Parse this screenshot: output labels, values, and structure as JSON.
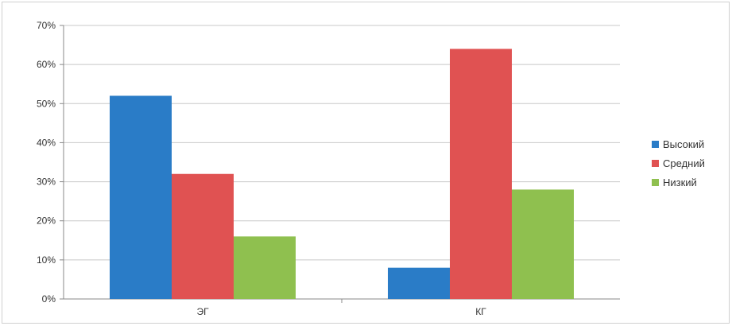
{
  "chart_data": {
    "type": "bar",
    "categories": [
      "ЭГ",
      "КГ"
    ],
    "series": [
      {
        "name": "Высокий",
        "values": [
          52,
          8
        ],
        "color": "#2a7cc7"
      },
      {
        "name": "Средний",
        "values": [
          32,
          64
        ],
        "color": "#e05252"
      },
      {
        "name": "Низкий",
        "values": [
          16,
          28
        ],
        "color": "#8fc04f"
      }
    ],
    "y_ticks": [
      "0%",
      "10%",
      "20%",
      "30%",
      "40%",
      "50%",
      "60%",
      "70%"
    ],
    "ylim": [
      0,
      70
    ],
    "grid": true,
    "legend_position": "right",
    "title": "",
    "xlabel": "",
    "ylabel": ""
  }
}
